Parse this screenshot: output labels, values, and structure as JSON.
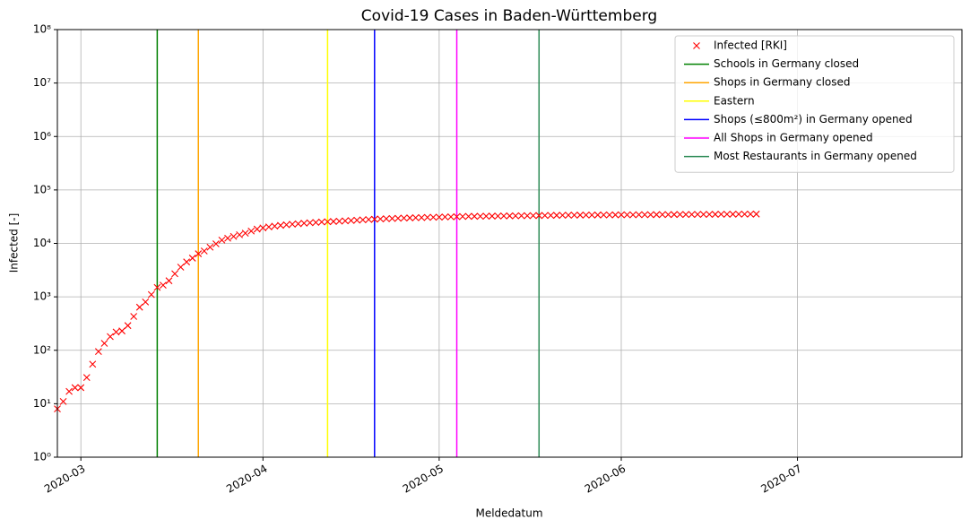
{
  "chart_data": {
    "type": "line",
    "title": "Covid-19 Cases in Baden-Württemberg",
    "xlabel": "Meldedatum",
    "ylabel": "Infected [-]",
    "x": [
      "2020-02-26",
      "2020-02-27",
      "2020-02-28",
      "2020-02-29",
      "2020-03-01",
      "2020-03-02",
      "2020-03-03",
      "2020-03-04",
      "2020-03-05",
      "2020-03-06",
      "2020-03-07",
      "2020-03-08",
      "2020-03-09",
      "2020-03-10",
      "2020-03-11",
      "2020-03-12",
      "2020-03-13",
      "2020-03-14",
      "2020-03-15",
      "2020-03-16",
      "2020-03-17",
      "2020-03-18",
      "2020-03-19",
      "2020-03-20",
      "2020-03-21",
      "2020-03-22",
      "2020-03-23",
      "2020-03-24",
      "2020-03-25",
      "2020-03-26",
      "2020-03-27",
      "2020-03-28",
      "2020-03-29",
      "2020-03-30",
      "2020-03-31",
      "2020-04-01",
      "2020-04-02",
      "2020-04-03",
      "2020-04-04",
      "2020-04-05",
      "2020-04-06",
      "2020-04-07",
      "2020-04-08",
      "2020-04-09",
      "2020-04-10",
      "2020-04-11",
      "2020-04-12",
      "2020-04-13",
      "2020-04-14",
      "2020-04-15",
      "2020-04-16",
      "2020-04-17",
      "2020-04-18",
      "2020-04-19",
      "2020-04-20",
      "2020-04-21",
      "2020-04-22",
      "2020-04-23",
      "2020-04-24",
      "2020-04-25",
      "2020-04-26",
      "2020-04-27",
      "2020-04-28",
      "2020-04-29",
      "2020-04-30",
      "2020-05-01",
      "2020-05-02",
      "2020-05-03",
      "2020-05-04",
      "2020-05-05",
      "2020-05-06",
      "2020-05-07",
      "2020-05-08",
      "2020-05-09",
      "2020-05-10",
      "2020-05-11",
      "2020-05-12",
      "2020-05-13",
      "2020-05-14",
      "2020-05-15",
      "2020-05-16",
      "2020-05-17",
      "2020-05-18",
      "2020-05-19",
      "2020-05-20",
      "2020-05-21",
      "2020-05-22",
      "2020-05-23",
      "2020-05-24",
      "2020-05-25",
      "2020-05-26",
      "2020-05-27",
      "2020-05-28",
      "2020-05-29",
      "2020-05-30",
      "2020-05-31",
      "2020-06-01",
      "2020-06-02",
      "2020-06-03",
      "2020-06-04",
      "2020-06-05",
      "2020-06-06",
      "2020-06-07",
      "2020-06-08",
      "2020-06-09",
      "2020-06-10",
      "2020-06-11",
      "2020-06-12",
      "2020-06-13",
      "2020-06-14",
      "2020-06-15",
      "2020-06-16",
      "2020-06-17",
      "2020-06-18",
      "2020-06-19",
      "2020-06-20",
      "2020-06-21",
      "2020-06-22",
      "2020-06-23",
      "2020-06-24"
    ],
    "series": [
      {
        "name": "Infected [RKI]",
        "color": "#ff0000",
        "marker": "x",
        "values": [
          8,
          11,
          17,
          20,
          20,
          31,
          55,
          95,
          135,
          180,
          220,
          230,
          290,
          430,
          640,
          800,
          1100,
          1500,
          1650,
          2000,
          2700,
          3600,
          4500,
          5300,
          6400,
          7200,
          8500,
          9800,
          11500,
          12500,
          13500,
          14500,
          15500,
          17000,
          18500,
          19500,
          20300,
          21000,
          21700,
          22300,
          22800,
          23300,
          23800,
          24300,
          24700,
          25100,
          25400,
          25700,
          26000,
          26400,
          26800,
          27200,
          27600,
          28000,
          28300,
          28600,
          28900,
          29200,
          29500,
          29800,
          30000,
          30200,
          30400,
          30600,
          30800,
          31000,
          31200,
          31400,
          31600,
          31800,
          32000,
          32100,
          32200,
          32300,
          32400,
          32500,
          32600,
          32700,
          32800,
          32900,
          33000,
          33100,
          33200,
          33300,
          33400,
          33500,
          33600,
          33700,
          33800,
          33850,
          33900,
          33950,
          34000,
          34050,
          34100,
          34150,
          34200,
          34250,
          34300,
          34350,
          34400,
          34450,
          34500,
          34550,
          34600,
          34650,
          34700,
          34750,
          34800,
          34850,
          34900,
          34950,
          35000,
          35050,
          35100,
          35150,
          35200,
          35250,
          35300,
          35350
        ]
      }
    ],
    "vlines": [
      {
        "name": "Schools in Germany closed",
        "color": "#008000",
        "x": "2020-03-14"
      },
      {
        "name": "Shops in Germany closed",
        "color": "#ffa500",
        "x": "2020-03-21"
      },
      {
        "name": "Eastern",
        "color": "#ffff00",
        "x": "2020-04-12"
      },
      {
        "name": "Shops (≤800m²) in Germany opened",
        "color": "#0000ff",
        "x": "2020-04-20"
      },
      {
        "name": "All Shops in Germany opened",
        "color": "#ff00ff",
        "x": "2020-05-04"
      },
      {
        "name": "Most Restaurants in Germany opened",
        "color": "#2e8b57",
        "x": "2020-05-18"
      }
    ],
    "xlim": [
      "2020-02-26",
      "2020-07-29"
    ],
    "xticks": [
      "2020-03",
      "2020-04",
      "2020-05",
      "2020-06",
      "2020-07"
    ],
    "ylim": [
      1,
      100000000
    ],
    "yticks": [
      {
        "value": 1,
        "label": "10⁰"
      },
      {
        "value": 10,
        "label": "10¹"
      },
      {
        "value": 100,
        "label": "10²"
      },
      {
        "value": 1000,
        "label": "10³"
      },
      {
        "value": 10000,
        "label": "10⁴"
      },
      {
        "value": 100000,
        "label": "10⁵"
      },
      {
        "value": 1000000,
        "label": "10⁶"
      },
      {
        "value": 10000000,
        "label": "10⁷"
      },
      {
        "value": 100000000,
        "label": "10⁸"
      }
    ],
    "log_y": true,
    "grid": true,
    "legend": "upper right"
  }
}
